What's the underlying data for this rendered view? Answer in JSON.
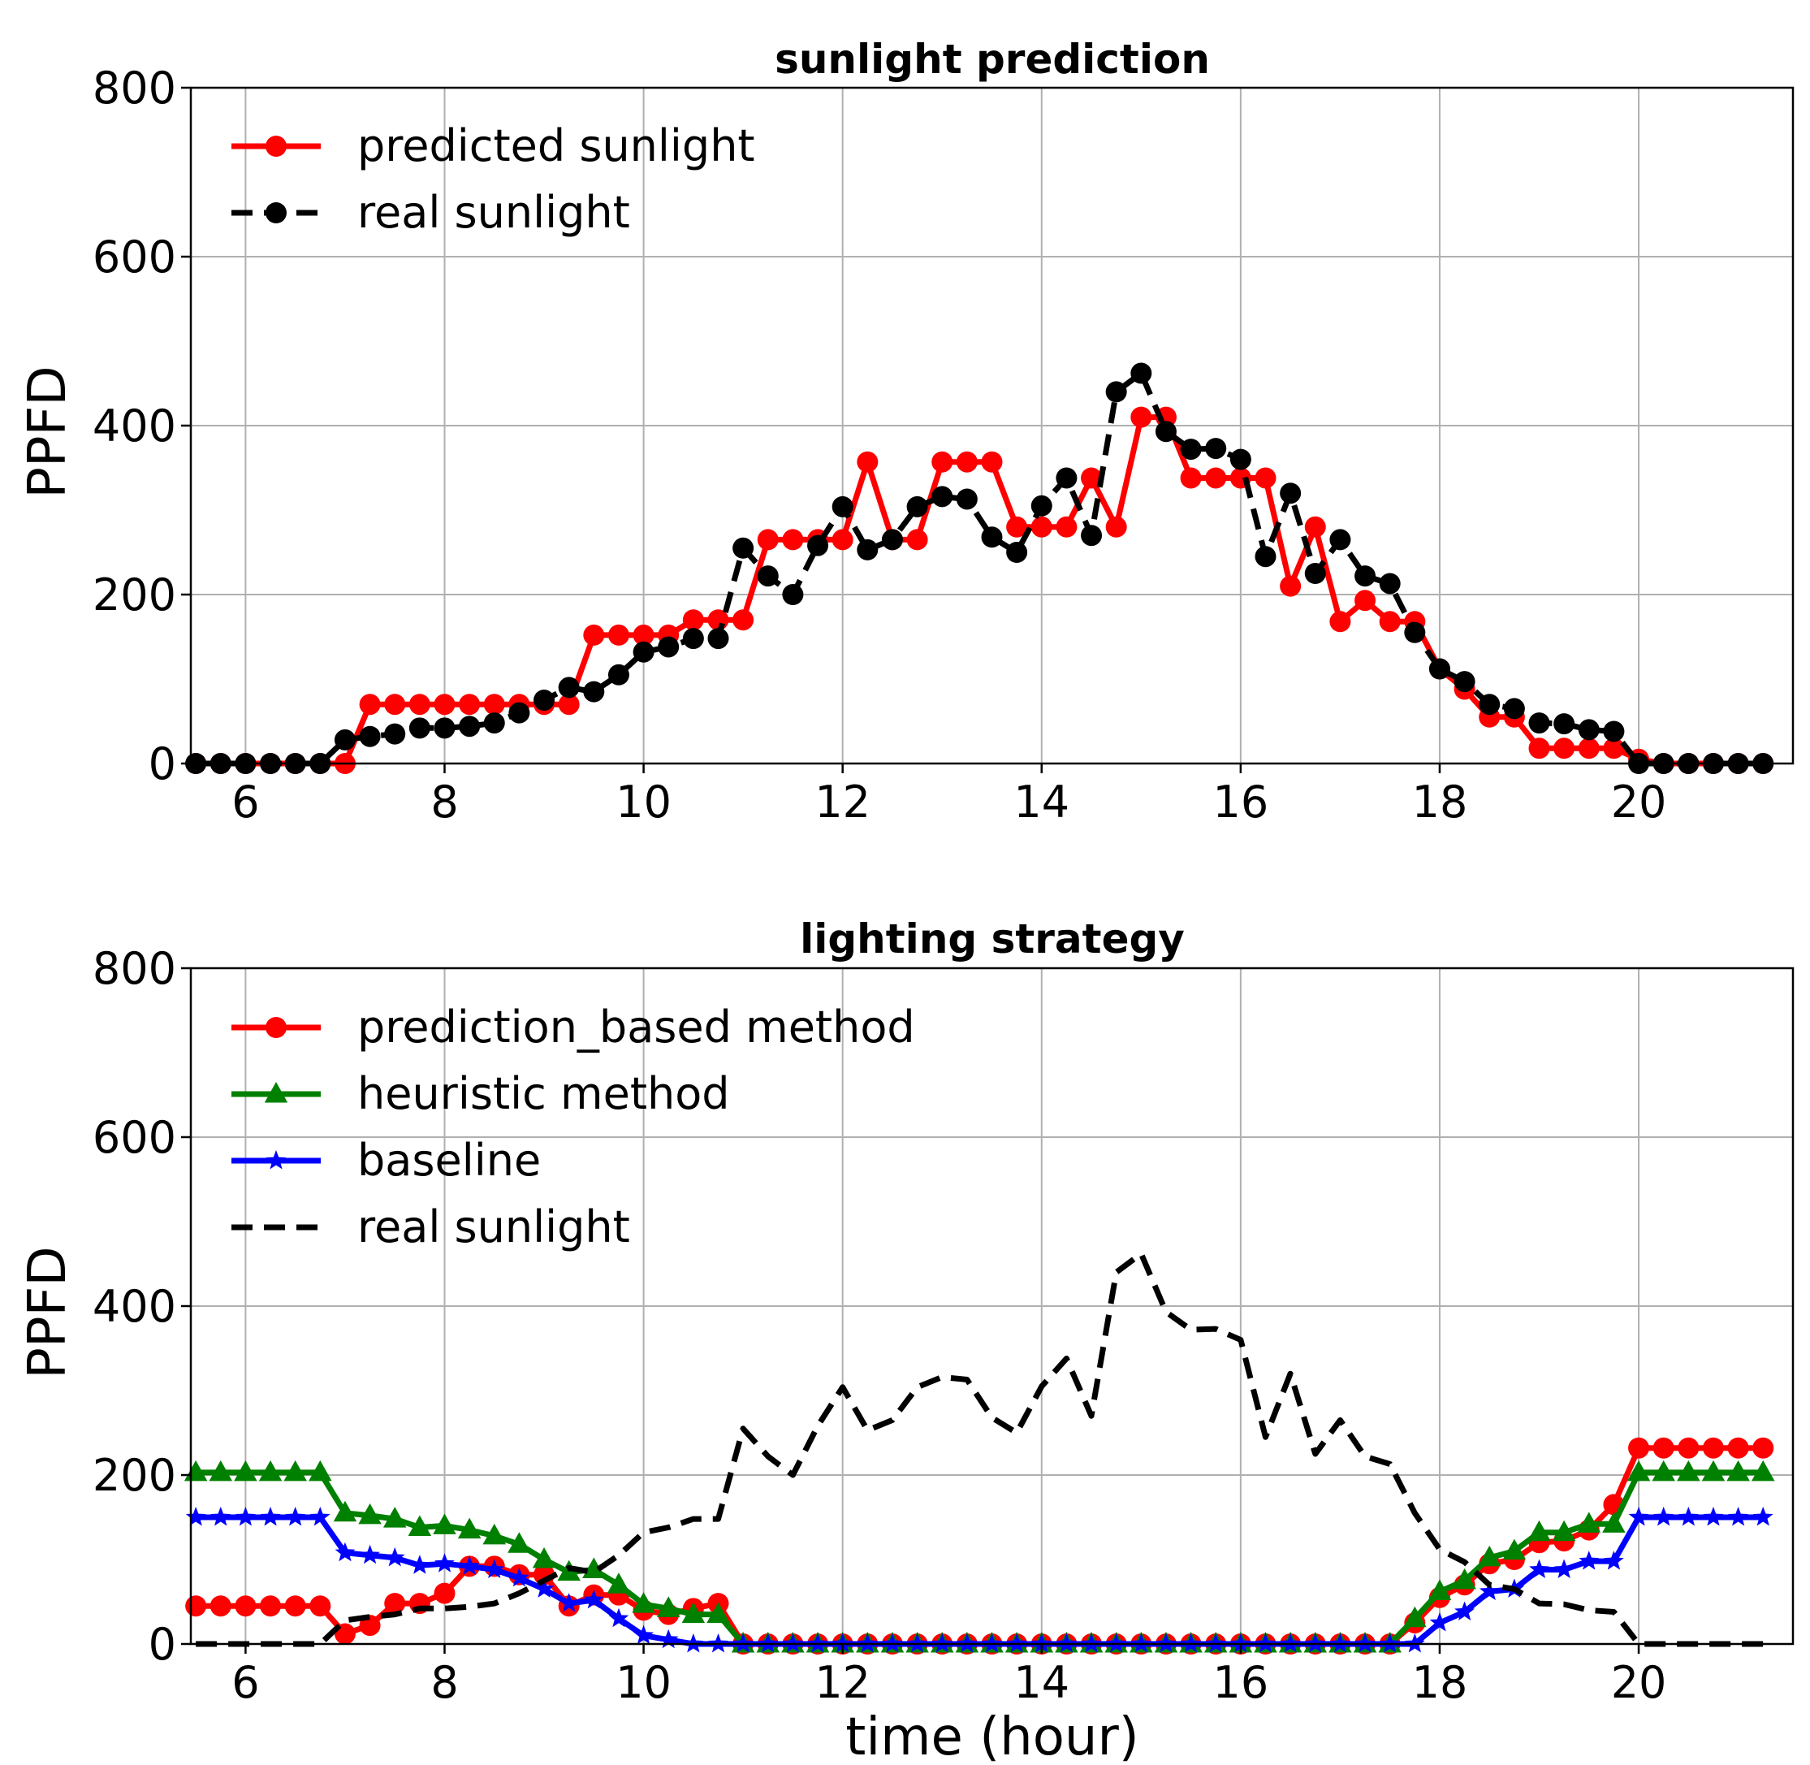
{
  "chart_data": [
    {
      "type": "line",
      "title": "sunlight prediction",
      "xlabel": "",
      "ylabel": "PPFD",
      "xlim": [
        5.45,
        21.55
      ],
      "ylim": [
        0,
        800
      ],
      "xticks": [
        "6",
        "8",
        "10",
        "12",
        "14",
        "16",
        "18",
        "20"
      ],
      "yticks": [
        "0",
        "200",
        "400",
        "600",
        "800"
      ],
      "grid": true,
      "legend_position": "top-left",
      "x": [
        5.5,
        5.75,
        6.0,
        6.25,
        6.5,
        6.75,
        7.0,
        7.25,
        7.5,
        7.75,
        8.0,
        8.25,
        8.5,
        8.75,
        9.0,
        9.25,
        9.5,
        9.75,
        10.0,
        10.25,
        10.5,
        10.75,
        11.0,
        11.25,
        11.5,
        11.75,
        12.0,
        12.25,
        12.5,
        12.75,
        13.0,
        13.25,
        13.5,
        13.75,
        14.0,
        14.25,
        14.5,
        14.75,
        15.0,
        15.25,
        15.5,
        15.75,
        16.0,
        16.25,
        16.5,
        16.75,
        17.0,
        17.25,
        17.5,
        17.75,
        18.0,
        18.25,
        18.5,
        18.75,
        19.0,
        19.25,
        19.5,
        19.75,
        20.0,
        20.25,
        20.5,
        20.75,
        21.0,
        21.25
      ],
      "series": [
        {
          "name": "predicted sunlight",
          "color": "#ff0000",
          "marker": "circle",
          "linestyle": "solid",
          "values": [
            0,
            0,
            0,
            0,
            0,
            0,
            0,
            70,
            70,
            70,
            70,
            70,
            70,
            70,
            70,
            70,
            152,
            152,
            152,
            152,
            170,
            170,
            170,
            265,
            265,
            265,
            265,
            357,
            265,
            265,
            357,
            357,
            357,
            280,
            280,
            280,
            338,
            280,
            410,
            410,
            338,
            338,
            338,
            338,
            210,
            280,
            168,
            193,
            168,
            168,
            112,
            88,
            55,
            55,
            18,
            18,
            18,
            18,
            5,
            0,
            0,
            0,
            0,
            0
          ]
        },
        {
          "name": "real sunlight",
          "color": "#000000",
          "marker": "circle",
          "linestyle": "dashed",
          "values": [
            0,
            0,
            0,
            0,
            0,
            0,
            28,
            32,
            35,
            42,
            42,
            44,
            48,
            60,
            75,
            90,
            85,
            105,
            132,
            138,
            148,
            148,
            255,
            222,
            200,
            258,
            304,
            253,
            265,
            304,
            316,
            313,
            268,
            250,
            305,
            338,
            270,
            440,
            462,
            393,
            372,
            373,
            360,
            245,
            320,
            225,
            265,
            222,
            213,
            155,
            112,
            97,
            70,
            65,
            48,
            47,
            40,
            38,
            0,
            0,
            0,
            0,
            0,
            0
          ]
        }
      ]
    },
    {
      "type": "line",
      "title": "lighting strategy",
      "xlabel": "time (hour)",
      "ylabel": "PPFD",
      "xlim": [
        5.45,
        21.55
      ],
      "ylim": [
        0,
        800
      ],
      "xticks": [
        "6",
        "8",
        "10",
        "12",
        "14",
        "16",
        "18",
        "20"
      ],
      "yticks": [
        "0",
        "200",
        "400",
        "600",
        "800"
      ],
      "grid": true,
      "legend_position": "top-left",
      "x": [
        5.5,
        5.75,
        6.0,
        6.25,
        6.5,
        6.75,
        7.0,
        7.25,
        7.5,
        7.75,
        8.0,
        8.25,
        8.5,
        8.75,
        9.0,
        9.25,
        9.5,
        9.75,
        10.0,
        10.25,
        10.5,
        10.75,
        11.0,
        11.25,
        11.5,
        11.75,
        12.0,
        12.25,
        12.5,
        12.75,
        13.0,
        13.25,
        13.5,
        13.75,
        14.0,
        14.25,
        14.5,
        14.75,
        15.0,
        15.25,
        15.5,
        15.75,
        16.0,
        16.25,
        16.5,
        16.75,
        17.0,
        17.25,
        17.5,
        17.75,
        18.0,
        18.25,
        18.5,
        18.75,
        19.0,
        19.25,
        19.5,
        19.75,
        20.0,
        20.25,
        20.5,
        20.75,
        21.0,
        21.25
      ],
      "series": [
        {
          "name": "prediction_based method",
          "color": "#ff0000",
          "marker": "circle",
          "linestyle": "solid",
          "values": [
            45,
            45,
            45,
            45,
            45,
            45,
            12,
            22,
            48,
            48,
            60,
            92,
            92,
            82,
            82,
            45,
            58,
            58,
            40,
            35,
            42,
            48,
            0,
            0,
            0,
            0,
            0,
            0,
            0,
            0,
            0,
            0,
            0,
            0,
            0,
            0,
            0,
            0,
            0,
            0,
            0,
            0,
            0,
            0,
            0,
            0,
            0,
            0,
            0,
            25,
            55,
            70,
            95,
            100,
            120,
            122,
            135,
            165,
            232,
            232,
            232,
            232,
            232,
            232
          ]
        },
        {
          "name": "heuristic method",
          "color": "#008000",
          "marker": "triangle",
          "linestyle": "solid",
          "values": [
            203,
            203,
            203,
            203,
            203,
            203,
            155,
            152,
            148,
            138,
            140,
            135,
            128,
            118,
            100,
            85,
            88,
            70,
            47,
            42,
            35,
            35,
            0,
            0,
            0,
            0,
            0,
            0,
            0,
            0,
            0,
            0,
            0,
            0,
            0,
            0,
            0,
            0,
            0,
            0,
            0,
            0,
            0,
            0,
            0,
            0,
            0,
            0,
            0,
            30,
            62,
            75,
            102,
            110,
            132,
            132,
            142,
            142,
            203,
            203,
            203,
            203,
            203,
            203
          ]
        },
        {
          "name": "baseline",
          "color": "#0000ff",
          "marker": "star",
          "linestyle": "solid",
          "values": [
            150,
            150,
            150,
            150,
            150,
            150,
            108,
            105,
            102,
            93,
            95,
            92,
            88,
            78,
            65,
            48,
            52,
            30,
            10,
            5,
            0,
            0,
            0,
            0,
            0,
            0,
            0,
            0,
            0,
            0,
            0,
            0,
            0,
            0,
            0,
            0,
            0,
            0,
            0,
            0,
            0,
            0,
            0,
            0,
            0,
            0,
            0,
            0,
            0,
            0,
            25,
            38,
            62,
            65,
            88,
            88,
            98,
            98,
            150,
            150,
            150,
            150,
            150,
            150
          ]
        },
        {
          "name": "real sunlight",
          "color": "#000000",
          "marker": "none",
          "linestyle": "dashed",
          "values": [
            0,
            0,
            0,
            0,
            0,
            0,
            28,
            32,
            35,
            42,
            42,
            44,
            48,
            60,
            75,
            90,
            85,
            105,
            132,
            138,
            148,
            148,
            255,
            222,
            200,
            258,
            304,
            253,
            265,
            304,
            316,
            313,
            268,
            250,
            305,
            338,
            270,
            440,
            462,
            393,
            372,
            373,
            360,
            245,
            320,
            225,
            265,
            222,
            213,
            155,
            112,
            97,
            70,
            65,
            48,
            47,
            40,
            38,
            0,
            0,
            0,
            0,
            0,
            0
          ]
        }
      ]
    }
  ]
}
